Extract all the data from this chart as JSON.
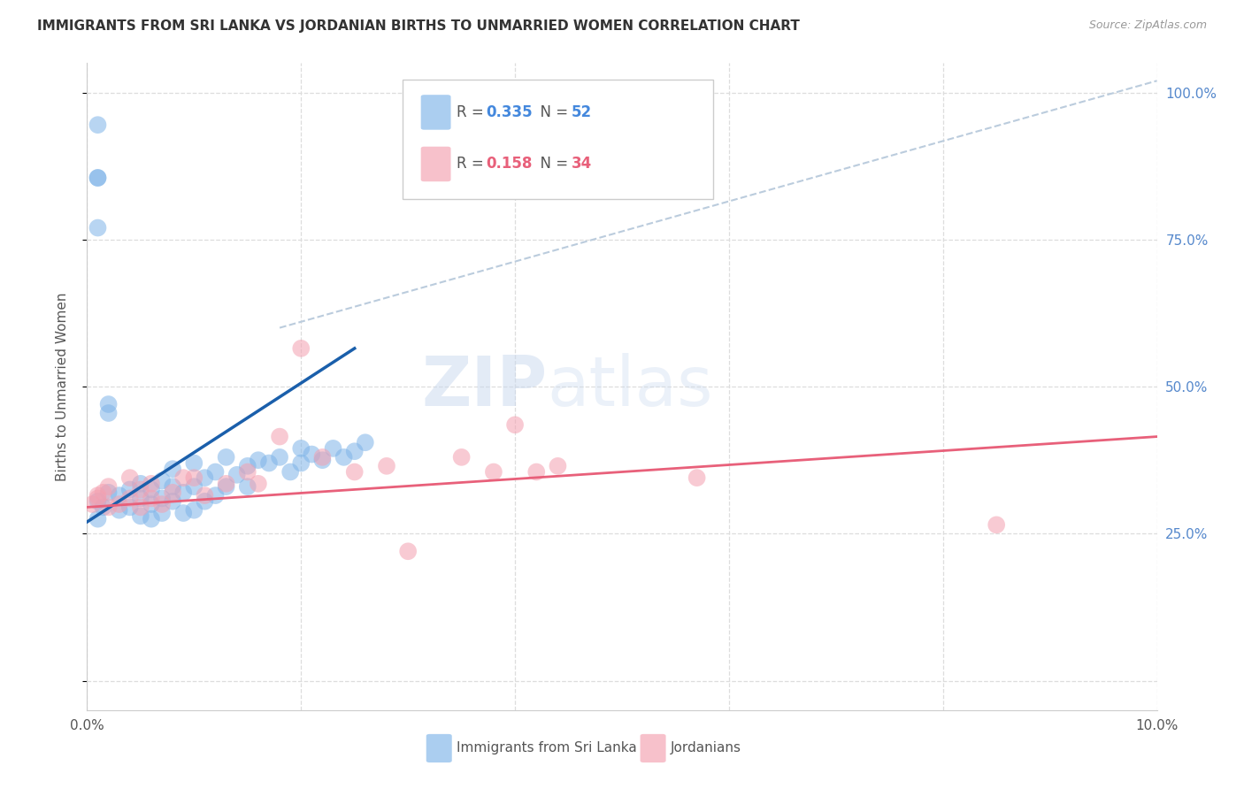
{
  "title": "IMMIGRANTS FROM SRI LANKA VS JORDANIAN BIRTHS TO UNMARRIED WOMEN CORRELATION CHART",
  "source": "Source: ZipAtlas.com",
  "ylabel": "Births to Unmarried Women",
  "legend_blue_R": "0.335",
  "legend_blue_N": "52",
  "legend_pink_R": "0.158",
  "legend_pink_N": "34",
  "legend_label_blue": "Immigrants from Sri Lanka",
  "legend_label_pink": "Jordanians",
  "xmin": 0.0,
  "xmax": 0.1,
  "ymin": -0.05,
  "ymax": 1.05,
  "yticks": [
    0.0,
    0.25,
    0.5,
    0.75,
    1.0
  ],
  "ytick_labels_right": [
    "",
    "25.0%",
    "50.0%",
    "75.0%",
    "100.0%"
  ],
  "xticks": [
    0.0,
    0.02,
    0.04,
    0.06,
    0.08,
    0.1
  ],
  "xtick_labels": [
    "0.0%",
    "",
    "",
    "",
    "",
    "10.0%"
  ],
  "blue_color": "#7EB4E8",
  "pink_color": "#F4A0B0",
  "blue_line_color": "#1A5FAB",
  "pink_line_color": "#E8607A",
  "dashed_line_color": "#BBCCDD",
  "watermark_color": "#C8D8EE",
  "background_color": "#FFFFFF",
  "blue_points_x": [
    0.001,
    0.0015,
    0.001,
    0.002,
    0.003,
    0.003,
    0.004,
    0.004,
    0.005,
    0.005,
    0.005,
    0.006,
    0.006,
    0.006,
    0.007,
    0.007,
    0.007,
    0.008,
    0.008,
    0.008,
    0.009,
    0.009,
    0.01,
    0.01,
    0.01,
    0.011,
    0.011,
    0.012,
    0.012,
    0.013,
    0.013,
    0.014,
    0.015,
    0.015,
    0.016,
    0.017,
    0.018,
    0.019,
    0.02,
    0.02,
    0.021,
    0.022,
    0.023,
    0.024,
    0.025,
    0.026,
    0.001,
    0.001,
    0.001,
    0.001,
    0.002,
    0.002
  ],
  "blue_points_y": [
    0.305,
    0.295,
    0.275,
    0.32,
    0.29,
    0.315,
    0.295,
    0.325,
    0.28,
    0.31,
    0.335,
    0.275,
    0.3,
    0.325,
    0.285,
    0.31,
    0.34,
    0.305,
    0.33,
    0.36,
    0.285,
    0.32,
    0.29,
    0.33,
    0.37,
    0.305,
    0.345,
    0.315,
    0.355,
    0.33,
    0.38,
    0.35,
    0.33,
    0.365,
    0.375,
    0.37,
    0.38,
    0.355,
    0.37,
    0.395,
    0.385,
    0.375,
    0.395,
    0.38,
    0.39,
    0.405,
    0.945,
    0.855,
    0.855,
    0.77,
    0.47,
    0.455
  ],
  "pink_points_x": [
    0.0005,
    0.001,
    0.001,
    0.0015,
    0.002,
    0.002,
    0.003,
    0.004,
    0.004,
    0.005,
    0.005,
    0.006,
    0.006,
    0.007,
    0.008,
    0.009,
    0.01,
    0.011,
    0.013,
    0.015,
    0.016,
    0.018,
    0.02,
    0.022,
    0.025,
    0.028,
    0.03,
    0.035,
    0.038,
    0.04,
    0.042,
    0.044,
    0.057,
    0.085
  ],
  "pink_points_y": [
    0.3,
    0.31,
    0.315,
    0.32,
    0.295,
    0.33,
    0.3,
    0.31,
    0.345,
    0.295,
    0.325,
    0.31,
    0.335,
    0.3,
    0.32,
    0.345,
    0.345,
    0.315,
    0.335,
    0.355,
    0.335,
    0.415,
    0.565,
    0.38,
    0.355,
    0.365,
    0.22,
    0.38,
    0.355,
    0.435,
    0.355,
    0.365,
    0.345,
    0.265
  ],
  "blue_line_x": [
    0.0,
    0.025
  ],
  "blue_line_y": [
    0.27,
    0.565
  ],
  "pink_line_x": [
    0.0,
    0.1
  ],
  "pink_line_y": [
    0.295,
    0.415
  ],
  "dash_line_x": [
    0.018,
    0.1
  ],
  "dash_line_y": [
    0.6,
    1.02
  ]
}
